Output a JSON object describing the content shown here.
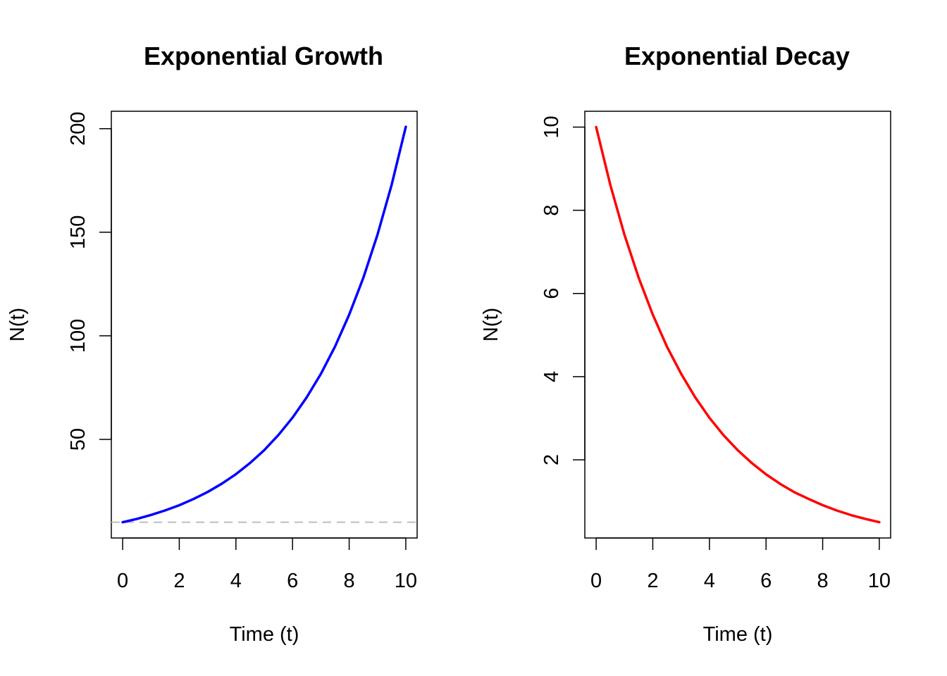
{
  "chart_data": [
    {
      "type": "line",
      "title": "Exponential Growth",
      "xlabel": "Time (t)",
      "ylabel": "N(t)",
      "xlim": [
        -0.4,
        10.4
      ],
      "ylim": [
        2.4,
        208.4
      ],
      "x_ticks": [
        0,
        2,
        4,
        6,
        8,
        10
      ],
      "x_tick_labels": [
        "0",
        "2",
        "4",
        "6",
        "8",
        "10"
      ],
      "y_ticks": [
        50,
        100,
        150,
        200
      ],
      "y_tick_labels": [
        "50",
        "100",
        "150",
        "200"
      ],
      "grid": false,
      "series": [
        {
          "color": "#0000ff",
          "x": [
            0,
            0.5,
            1,
            1.5,
            2,
            2.5,
            3,
            3.5,
            4,
            4.5,
            5,
            5.5,
            6,
            6.5,
            7,
            7.5,
            8,
            8.5,
            9,
            9.5,
            10
          ],
          "y": [
            10,
            11.6,
            13.5,
            15.7,
            18.2,
            21.2,
            24.6,
            28.6,
            33.2,
            38.6,
            44.8,
            52.1,
            60.5,
            70.3,
            81.6,
            94.8,
            110.2,
            128.0,
            148.8,
            172.9,
            200.9
          ]
        }
      ],
      "reference_line": {
        "y": 10,
        "color": "#bebebe",
        "style": "dashed"
      }
    },
    {
      "type": "line",
      "title": "Exponential Decay",
      "xlabel": "Time (t)",
      "ylabel": "N(t)",
      "xlim": [
        -0.4,
        10.4
      ],
      "ylim": [
        0.12,
        10.38
      ],
      "x_ticks": [
        0,
        2,
        4,
        6,
        8,
        10
      ],
      "x_tick_labels": [
        "0",
        "2",
        "4",
        "6",
        "8",
        "10"
      ],
      "y_ticks": [
        2,
        4,
        6,
        8,
        10
      ],
      "y_tick_labels": [
        "2",
        "4",
        "6",
        "8",
        "10"
      ],
      "grid": false,
      "series": [
        {
          "color": "#ff0000",
          "x": [
            0,
            0.5,
            1,
            1.5,
            2,
            2.5,
            3,
            3.5,
            4,
            4.5,
            5,
            5.5,
            6,
            6.5,
            7,
            7.5,
            8,
            8.5,
            9,
            9.5,
            10
          ],
          "y": [
            10,
            8.61,
            7.41,
            6.38,
            5.49,
            4.72,
            4.07,
            3.5,
            3.01,
            2.59,
            2.23,
            1.92,
            1.65,
            1.42,
            1.22,
            1.06,
            0.91,
            0.78,
            0.67,
            0.58,
            0.5
          ]
        }
      ]
    }
  ]
}
